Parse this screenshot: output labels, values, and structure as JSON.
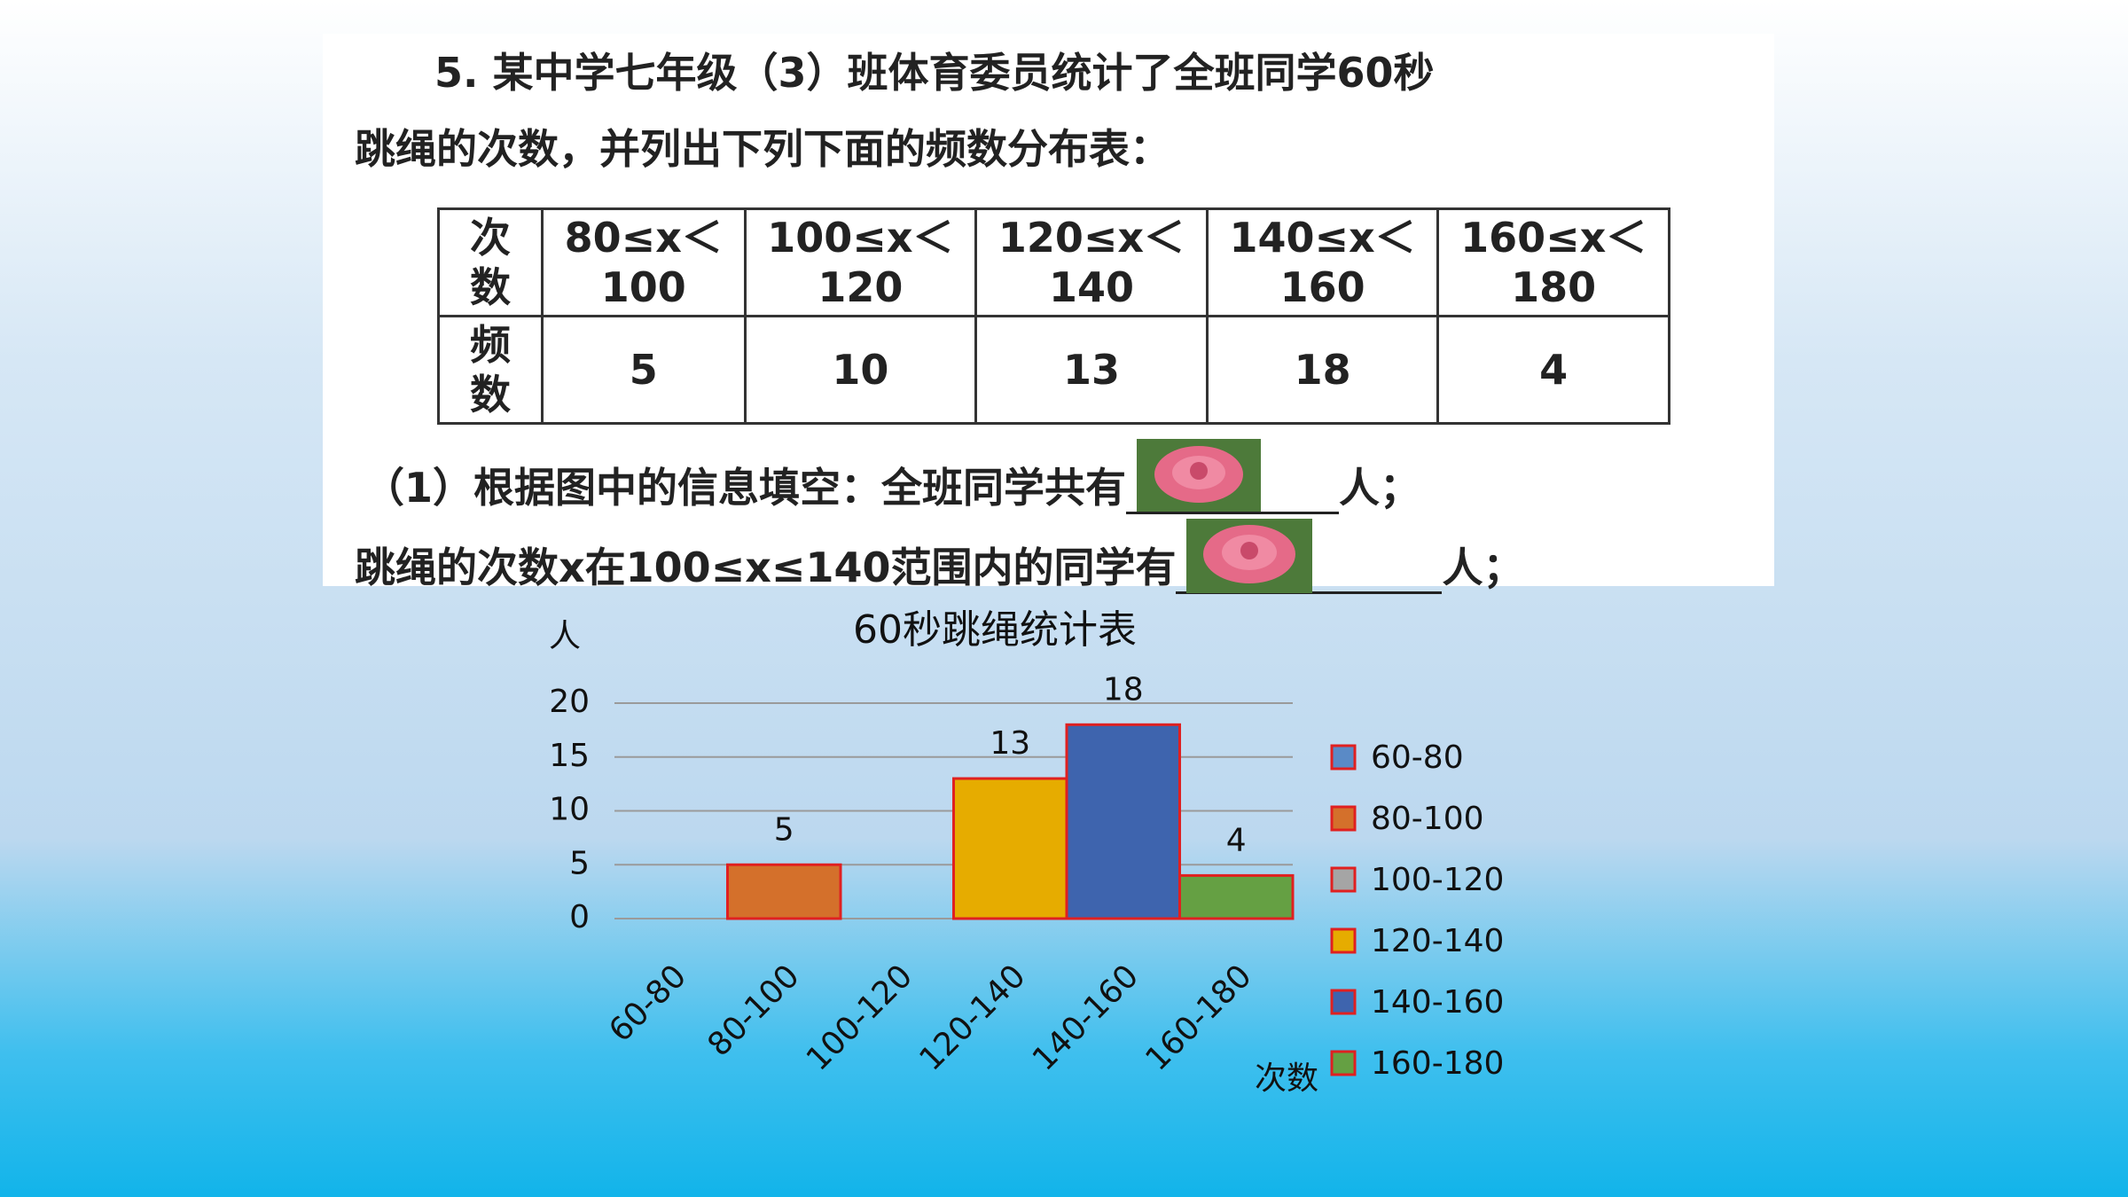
{
  "problem": {
    "lines": [
      "5. 某中学七年级（3）班体育委员统计了全班同学60秒",
      "跳绳的次数，并列出下列下面的频数分布表："
    ],
    "blanks": [
      {
        "before": "（1）根据图中的信息填空：全班同学共有",
        "after": "人；"
      },
      {
        "before": "跳绳的次数x在100≤x≤140范围内的同学有",
        "after": "人；"
      }
    ]
  },
  "table": {
    "rows": [
      [
        "次数",
        "80≤x＜100",
        "100≤x＜120",
        "120≤x＜140",
        "140≤x＜160",
        "160≤x＜180"
      ],
      [
        "频数",
        "5",
        "10",
        "13",
        "18",
        "4"
      ]
    ]
  },
  "chart_data": {
    "type": "bar",
    "title": "60秒跳绳统计表",
    "y_label": "人",
    "x_label": "次数",
    "categories": [
      "60-80",
      "80-100",
      "100-120",
      "120-140",
      "140-160",
      "160-180"
    ],
    "values": [
      null,
      5,
      null,
      13,
      18,
      4
    ],
    "colors": [
      "#5a8ac6",
      "#d4702b",
      "#a5a5a5",
      "#e6ac00",
      "#3e64ae",
      "#65a043"
    ],
    "edge_color": "#e02020",
    "ylim": [
      0,
      20
    ],
    "yticks": [
      0,
      5,
      10,
      15,
      20
    ],
    "grid": true,
    "legend": "right"
  }
}
